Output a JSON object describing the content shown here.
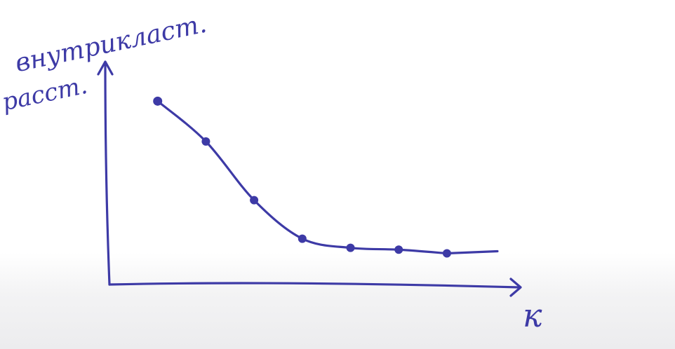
{
  "chart_data": {
    "type": "line",
    "title": "",
    "xlabel": "к",
    "ylabel": "внутрикласт. расст.",
    "x": [
      1,
      2,
      3,
      4,
      5,
      6,
      7
    ],
    "series": [
      {
        "values": [
          10,
          7.8,
          4.6,
          2.5,
          2.0,
          1.9,
          1.7
        ]
      }
    ],
    "xlim": [
      0,
      8.5
    ],
    "ylim": [
      0,
      12
    ],
    "grid": false,
    "colors": {
      "ink": "#3d3aa6"
    }
  }
}
